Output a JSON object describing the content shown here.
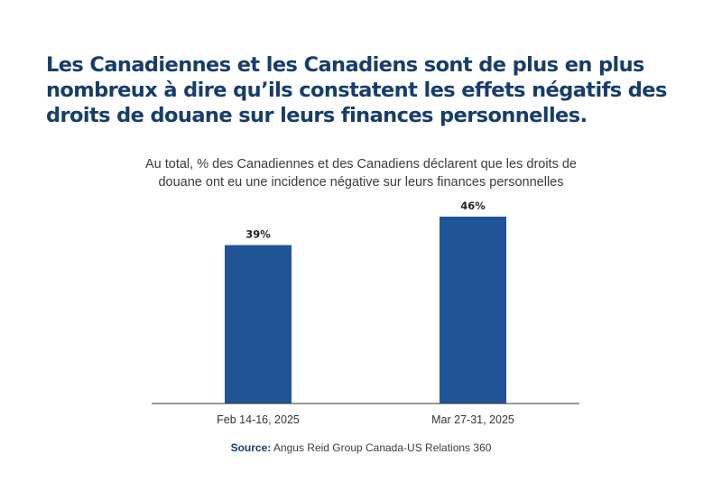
{
  "headline": "Les Canadiennes et les Canadiens sont de plus en plus nombreux à dire qu’ils constatent les effets négatifs des droits de douane sur leurs finances personnelles.",
  "subtitle_lines": [
    "Au total, % des Canadiennes et des Canadiens déclarent que les droits de",
    "douane ont eu une incidence négative sur leurs finances personnelles"
  ],
  "source": {
    "label": "Source:",
    "text": "Angus Reid Group Canada-US Relations 360"
  },
  "colors": {
    "bar": "#1f5497",
    "headline": "#173d6b",
    "axis": "#333333"
  },
  "chart_data": {
    "type": "bar",
    "categories": [
      "Feb 14-16, 2025",
      "Mar 27-31, 2025"
    ],
    "values": [
      39,
      46
    ],
    "value_labels": [
      "39%",
      "46%"
    ],
    "unit": "%",
    "ylim": [
      0,
      100
    ],
    "grid": false,
    "legend": "none"
  }
}
